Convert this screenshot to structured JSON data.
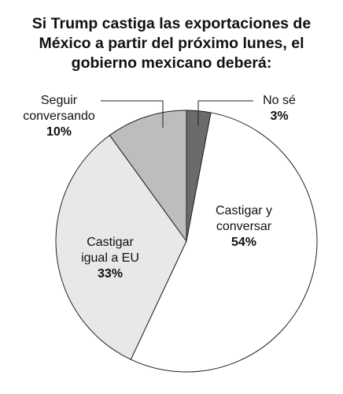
{
  "chart_data": {
    "type": "pie",
    "title": "Si Trump castiga las exportaciones de\nMéxico a partir del próximo lunes, el\ngobierno mexicano deberá:",
    "categories": [
      "No sé",
      "Castigar y\nconversar",
      "Castigar\nigual a EU",
      "Seguir\nconversando"
    ],
    "values": [
      3,
      54,
      33,
      10
    ],
    "value_labels": [
      "3%",
      "54%",
      "33%",
      "10%"
    ],
    "colors": [
      "#6b6b6b",
      "#ffffff",
      "#e8e8e8",
      "#bdbdbd"
    ]
  }
}
